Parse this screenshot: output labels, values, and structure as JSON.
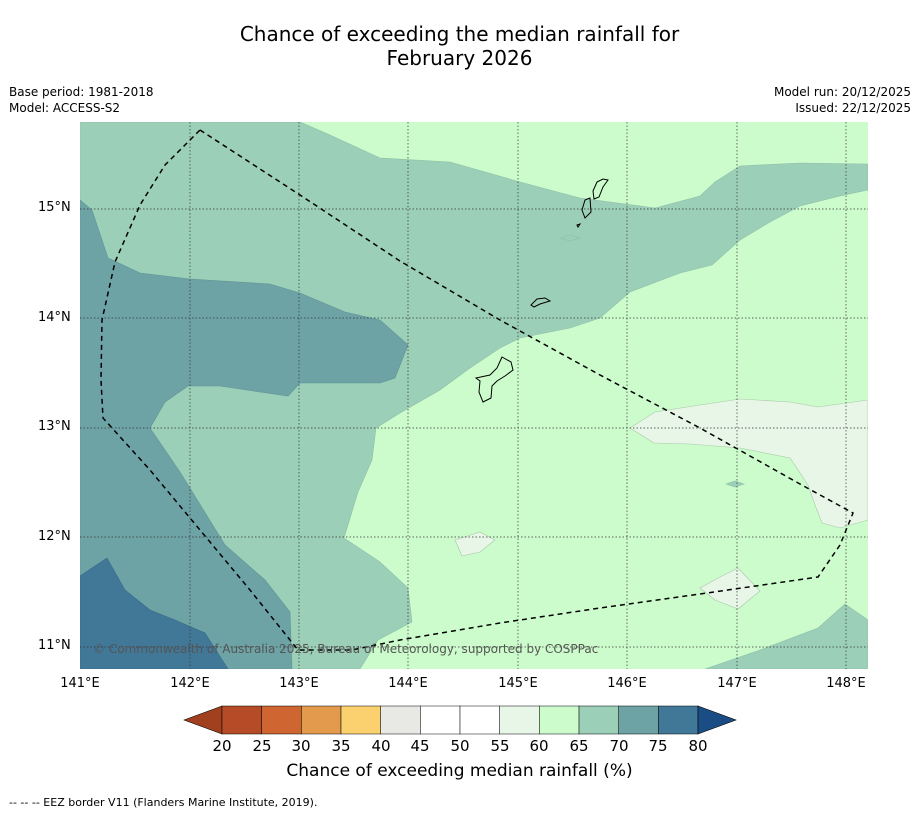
{
  "title": {
    "line1": "Chance of exceeding the median rainfall for",
    "line2": "February 2026"
  },
  "meta": {
    "base_period": "Base period: 1981-2018",
    "model": "Model: ACCESS-S2",
    "model_run": "Model run: 20/12/2025",
    "issued": "Issued: 22/12/2025"
  },
  "map": {
    "lat_labels": [
      "15°N",
      "14°N",
      "13°N",
      "12°N",
      "11°N"
    ],
    "lon_labels": [
      "141°E",
      "142°E",
      "143°E",
      "144°E",
      "145°E",
      "146°E",
      "147°E",
      "148°E"
    ],
    "copyright": "© Commonwealth of Australia 2025, Bureau of Meteorology, supported by COSPPac"
  },
  "colorbar": {
    "labels": [
      "20",
      "25",
      "30",
      "35",
      "40",
      "45",
      "50",
      "55",
      "60",
      "65",
      "70",
      "75",
      "80"
    ],
    "colors": {
      "below_20": "#a0401f",
      "20_25": "#b54b27",
      "25_30": "#cf6531",
      "30_35": "#e39a4d",
      "35_40": "#fbd06e",
      "40_45": "#e8e8e4",
      "45_50": "#ffffff",
      "50_55": "#ffffff",
      "55_60": "#e8f6e8",
      "60_65": "#ccfccc",
      "65_70": "#9ccfb8",
      "70_75": "#6ea3a6",
      "75_80": "#417898",
      "above_80": "#1b4d85"
    },
    "title": "Chance of exceeding median rainfall (%)"
  },
  "legend": {
    "eez": "--  --  -- EEZ border V11 (Flanders Marine Institute, 2019)."
  }
}
